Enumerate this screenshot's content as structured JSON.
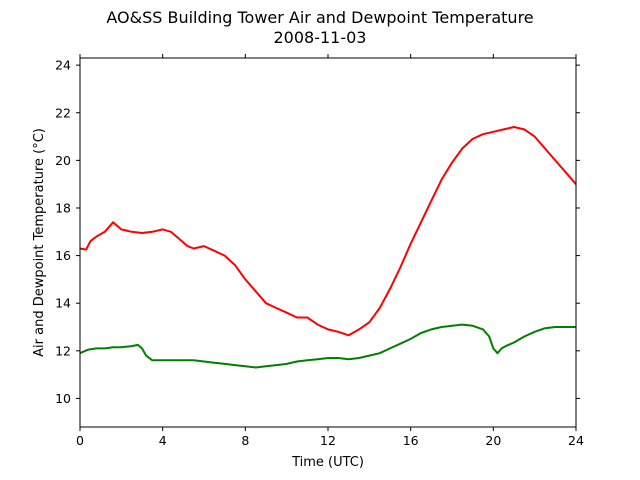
{
  "chart_data": {
    "type": "line",
    "title": "AO&SS Building Tower Air and Dewpoint Temperature",
    "subtitle": "2008-11-03",
    "xlabel": "Time (UTC)",
    "ylabel": "Air and Dewpoint Temperature (°C)",
    "xlim": [
      0,
      24
    ],
    "ylim": [
      8.8,
      24.3
    ],
    "xticks": [
      "0",
      "4",
      "8",
      "12",
      "16",
      "20",
      "24"
    ],
    "yticks": [
      "10",
      "12",
      "14",
      "16",
      "18",
      "20",
      "22",
      "24"
    ],
    "grid": false,
    "series": [
      {
        "color": "#ff0000",
        "x": [
          0,
          0.3,
          0.5,
          0.8,
          1.2,
          1.6,
          2.0,
          2.5,
          3.0,
          3.5,
          4.0,
          4.4,
          4.8,
          5.2,
          5.5,
          6.0,
          6.5,
          7.0,
          7.5,
          8.0,
          8.5,
          9.0,
          9.5,
          10.0,
          10.5,
          11.0,
          11.5,
          12.0,
          12.5,
          13.0,
          13.5,
          14.0,
          14.5,
          15.0,
          15.5,
          16.0,
          16.5,
          17.0,
          17.5,
          18.0,
          18.5,
          19.0,
          19.5,
          20.0,
          20.5,
          21.0,
          21.5,
          22.0,
          22.5,
          23.0,
          23.5,
          24.0
        ],
        "values": [
          16.3,
          16.25,
          16.6,
          16.8,
          17.0,
          17.4,
          17.1,
          17.0,
          16.95,
          17.0,
          17.1,
          17.0,
          16.7,
          16.4,
          16.3,
          16.4,
          16.2,
          16.0,
          15.6,
          15.0,
          14.5,
          14.0,
          13.8,
          13.6,
          13.4,
          13.4,
          13.1,
          12.9,
          12.8,
          12.65,
          12.9,
          13.2,
          13.8,
          14.6,
          15.5,
          16.5,
          17.4,
          18.3,
          19.2,
          19.9,
          20.5,
          20.9,
          21.1,
          21.2,
          21.3,
          21.4,
          21.3,
          21.0,
          20.5,
          20.0,
          19.5,
          19.0
        ]
      },
      {
        "color": "#008000",
        "x": [
          0,
          0.4,
          0.8,
          1.2,
          1.6,
          2.0,
          2.5,
          2.8,
          3.0,
          3.2,
          3.5,
          4.0,
          4.5,
          5.0,
          5.5,
          6.0,
          6.5,
          7.0,
          7.5,
          8.0,
          8.5,
          9.0,
          9.5,
          10.0,
          10.5,
          11.0,
          11.5,
          12.0,
          12.5,
          13.0,
          13.5,
          14.0,
          14.5,
          15.0,
          15.5,
          16.0,
          16.5,
          17.0,
          17.5,
          18.0,
          18.5,
          19.0,
          19.5,
          19.8,
          20.0,
          20.2,
          20.4,
          20.6,
          21.0,
          21.5,
          22.0,
          22.5,
          23.0,
          23.5,
          24.0
        ],
        "values": [
          11.9,
          12.05,
          12.1,
          12.1,
          12.15,
          12.15,
          12.2,
          12.25,
          12.1,
          11.8,
          11.6,
          11.6,
          11.6,
          11.6,
          11.6,
          11.55,
          11.5,
          11.45,
          11.4,
          11.35,
          11.3,
          11.35,
          11.4,
          11.45,
          11.55,
          11.6,
          11.65,
          11.7,
          11.7,
          11.65,
          11.7,
          11.8,
          11.9,
          12.1,
          12.3,
          12.5,
          12.75,
          12.9,
          13.0,
          13.05,
          13.1,
          13.05,
          12.9,
          12.6,
          12.1,
          11.9,
          12.1,
          12.2,
          12.35,
          12.6,
          12.8,
          12.95,
          13.0,
          13.0,
          13.0
        ]
      }
    ]
  }
}
